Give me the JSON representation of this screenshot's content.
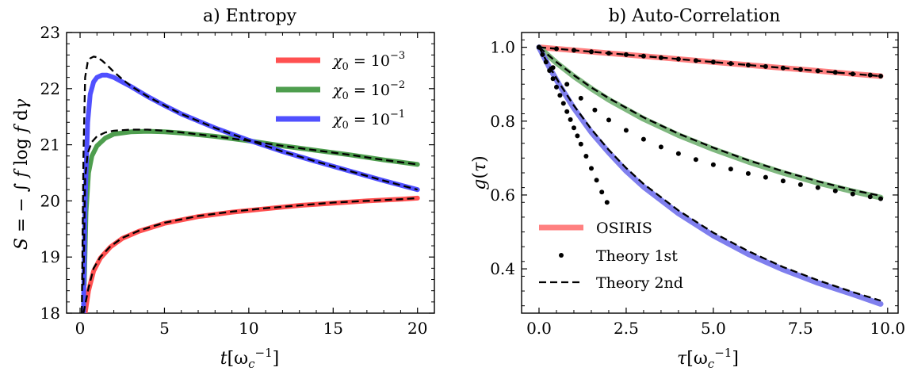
{
  "chart_data": [
    {
      "type": "line",
      "title": "a) Entropy",
      "xlabel": "t[ω_c^{-1}]",
      "ylabel": "S = −∫ f log f dγ",
      "xlim": [
        -0.8,
        21
      ],
      "ylim": [
        18,
        23
      ],
      "xticks": [
        "0",
        "5",
        "10",
        "15",
        "20"
      ],
      "yticks": [
        "18",
        "19",
        "20",
        "21",
        "22",
        "23"
      ],
      "legend": {
        "position": "top-right"
      },
      "series": [
        {
          "name": "χ0 = 10^-3",
          "color": "#ff5050",
          "x": [
            0.3,
            0.5,
            0.8,
            1.2,
            1.8,
            2.5,
            3.5,
            5,
            7,
            9,
            11,
            13,
            15,
            17,
            19,
            20
          ],
          "y": [
            18.0,
            18.4,
            18.75,
            18.98,
            19.18,
            19.33,
            19.46,
            19.6,
            19.72,
            19.8,
            19.86,
            19.92,
            19.96,
            20.0,
            20.03,
            20.05
          ]
        },
        {
          "name": "χ0 = 10^-2",
          "color": "#4e9e4e",
          "x": [
            0.25,
            0.35,
            0.5,
            0.7,
            1,
            1.5,
            2,
            3,
            4,
            5,
            6,
            8,
            10,
            12,
            14,
            16,
            18,
            20
          ],
          "y": [
            18.5,
            19.8,
            20.5,
            20.8,
            20.98,
            21.12,
            21.19,
            21.23,
            21.24,
            21.23,
            21.21,
            21.15,
            21.07,
            20.98,
            20.9,
            20.82,
            20.73,
            20.65
          ]
        },
        {
          "name": "χ0 = 10^-1",
          "color": "#5050ff",
          "x": [
            0.2,
            0.3,
            0.45,
            0.6,
            0.8,
            1,
            1.3,
            1.6,
            2,
            2.5,
            3,
            4,
            5,
            6,
            8,
            10,
            12,
            14,
            16,
            18,
            20
          ],
          "y": [
            18.0,
            20.0,
            21.4,
            21.9,
            22.12,
            22.2,
            22.24,
            22.24,
            22.2,
            22.12,
            22.04,
            21.86,
            21.7,
            21.55,
            21.3,
            21.08,
            20.88,
            20.7,
            20.53,
            20.36,
            20.2
          ]
        }
      ],
      "theory": [
        {
          "name": "Theory 2nd χ0 = 10^-3",
          "x": [
            0.2,
            0.5,
            0.8,
            1.2,
            1.8,
            2.5,
            3.5,
            5,
            7,
            9,
            11,
            13,
            15,
            17,
            19,
            20
          ],
          "y": [
            18.0,
            18.45,
            18.8,
            19.0,
            19.19,
            19.34,
            19.47,
            19.61,
            19.73,
            19.81,
            19.87,
            19.92,
            19.97,
            20.0,
            20.03,
            20.05
          ]
        },
        {
          "name": "Theory 2nd χ0 = 10^-2",
          "x": [
            0.2,
            0.3,
            0.45,
            0.7,
            1,
            1.5,
            2,
            3,
            4,
            5,
            6,
            8,
            10,
            12,
            14,
            16,
            18,
            20
          ],
          "y": [
            18.5,
            20.4,
            20.85,
            21.05,
            21.15,
            21.22,
            21.25,
            21.27,
            21.27,
            21.25,
            21.22,
            21.15,
            21.07,
            20.98,
            20.9,
            20.82,
            20.73,
            20.65
          ]
        },
        {
          "name": "Theory 2nd χ0 = 10^-1",
          "x": [
            0.1,
            0.2,
            0.3,
            0.45,
            0.6,
            0.8,
            1,
            1.3,
            1.6,
            2,
            2.5,
            3,
            4,
            5,
            6,
            8,
            10,
            12,
            14,
            16,
            18,
            20
          ],
          "y": [
            18.0,
            20.8,
            22.2,
            22.47,
            22.54,
            22.57,
            22.56,
            22.5,
            22.42,
            22.3,
            22.17,
            22.05,
            21.86,
            21.7,
            21.55,
            21.3,
            21.08,
            20.88,
            20.7,
            20.53,
            20.36,
            20.2
          ]
        }
      ]
    },
    {
      "type": "line",
      "title": "b) Auto-Correlation",
      "xlabel": "τ[ω_c^{-1}]",
      "ylabel": "g(τ)",
      "xlim": [
        -0.5,
        10.3
      ],
      "ylim": [
        0.28,
        1.04
      ],
      "xticks": [
        "0.0",
        "2.5",
        "5.0",
        "7.5",
        "10.0"
      ],
      "yticks": [
        "0.4",
        "0.6",
        "0.8",
        "1.0"
      ],
      "legend": {
        "position": "lower-left",
        "entries": [
          "OSIRIS",
          "Theory 1st",
          "Theory 2nd"
        ]
      },
      "series": [
        {
          "name": "OSIRIS",
          "color": "#ff8080",
          "x": [
            0,
            1,
            2,
            3,
            4,
            5,
            6,
            7,
            8,
            9,
            9.8
          ],
          "y": [
            1.0,
            0.992,
            0.984,
            0.976,
            0.968,
            0.96,
            0.952,
            0.944,
            0.936,
            0.928,
            0.922
          ]
        },
        {
          "name": "",
          "color": "#7fb87f",
          "x": [
            0,
            0.5,
            1,
            1.5,
            2,
            3,
            4,
            5,
            6,
            7,
            8,
            9,
            9.8
          ],
          "y": [
            1.0,
            0.958,
            0.921,
            0.888,
            0.858,
            0.806,
            0.762,
            0.724,
            0.69,
            0.66,
            0.633,
            0.61,
            0.593
          ]
        },
        {
          "name": "",
          "color": "#7f7fee",
          "x": [
            0,
            0.3,
            0.6,
            1,
            1.5,
            2,
            2.5,
            3,
            4,
            5,
            6,
            7,
            8,
            9,
            9.8
          ],
          "y": [
            1.0,
            0.945,
            0.895,
            0.835,
            0.77,
            0.715,
            0.665,
            0.622,
            0.55,
            0.49,
            0.44,
            0.398,
            0.362,
            0.331,
            0.305
          ]
        }
      ],
      "theory_1st": [
        {
          "x": [
            0,
            0.5,
            1,
            1.5,
            2,
            2.5,
            3,
            3.5,
            4,
            4.5,
            5,
            5.5,
            6,
            6.5,
            7,
            7.5,
            8,
            8.5,
            9,
            9.5,
            9.8
          ],
          "y": [
            1.0,
            0.996,
            0.992,
            0.988,
            0.984,
            0.98,
            0.976,
            0.972,
            0.968,
            0.964,
            0.96,
            0.956,
            0.952,
            0.948,
            0.944,
            0.94,
            0.936,
            0.932,
            0.928,
            0.925,
            0.922
          ]
        },
        {
          "x": [
            0,
            0.4,
            0.8,
            1.2,
            1.6,
            2,
            2.5,
            3,
            3.5,
            4,
            4.5,
            5,
            5.5,
            6,
            6.5,
            7,
            7.5,
            8,
            8.5,
            9,
            9.5,
            9.8
          ],
          "y": [
            1.0,
            0.945,
            0.9,
            0.862,
            0.83,
            0.803,
            0.775,
            0.751,
            0.73,
            0.712,
            0.696,
            0.682,
            0.67,
            0.658,
            0.648,
            0.638,
            0.628,
            0.62,
            0.611,
            0.603,
            0.595,
            0.59
          ]
        },
        {
          "x": [
            0,
            0.1,
            0.2,
            0.3,
            0.4,
            0.5,
            0.6,
            0.7,
            0.8,
            0.9,
            1.0,
            1.1,
            1.2,
            1.35,
            1.5,
            1.65,
            1.8,
            1.95
          ],
          "y": [
            1.0,
            0.98,
            0.96,
            0.937,
            0.915,
            0.892,
            0.87,
            0.848,
            0.826,
            0.804,
            0.782,
            0.76,
            0.738,
            0.705,
            0.672,
            0.64,
            0.608,
            0.58
          ]
        }
      ],
      "theory_2nd": [
        {
          "x": [
            0,
            1,
            2,
            3,
            4,
            5,
            6,
            7,
            8,
            9,
            9.8
          ],
          "y": [
            1.0,
            0.992,
            0.984,
            0.976,
            0.968,
            0.96,
            0.952,
            0.944,
            0.936,
            0.928,
            0.922
          ]
        },
        {
          "x": [
            0,
            0.5,
            1,
            1.5,
            2,
            3,
            4,
            5,
            6,
            7,
            8,
            9,
            9.8
          ],
          "y": [
            1.0,
            0.96,
            0.924,
            0.891,
            0.862,
            0.81,
            0.766,
            0.728,
            0.694,
            0.664,
            0.637,
            0.613,
            0.598
          ]
        },
        {
          "x": [
            0,
            0.3,
            0.6,
            1,
            1.5,
            2,
            2.5,
            3,
            4,
            5,
            6,
            7,
            8,
            9,
            9.8
          ],
          "y": [
            1.0,
            0.948,
            0.9,
            0.842,
            0.778,
            0.722,
            0.673,
            0.63,
            0.558,
            0.498,
            0.448,
            0.405,
            0.369,
            0.337,
            0.314
          ]
        }
      ]
    }
  ]
}
